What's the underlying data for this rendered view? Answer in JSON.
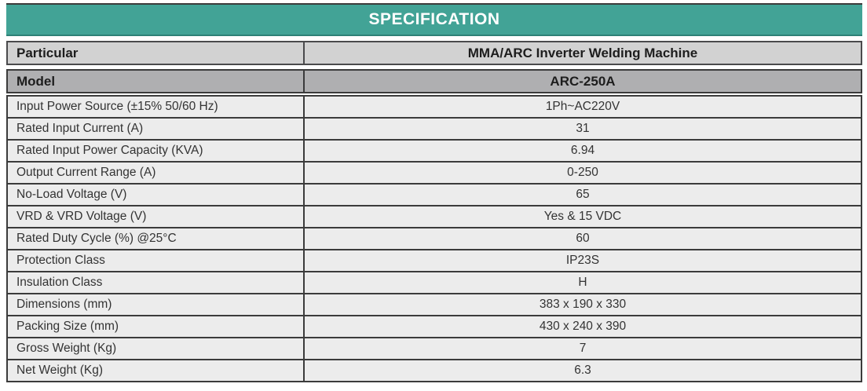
{
  "title": "SPECIFICATION",
  "colors": {
    "accent_teal": "#42A396",
    "header_row_gray": "#D2D2D2",
    "model_row_gray": "#AFAFB1",
    "data_row_gray": "#ECECEC",
    "border_dark": "#3B3B3B",
    "title_text": "#FFFFFF"
  },
  "header": {
    "particular_label": "Particular",
    "product_name": "MMA/ARC Inverter Welding Machine"
  },
  "model": {
    "label": "Model",
    "value": "ARC-250A"
  },
  "spec": {
    "rows": [
      {
        "label": "Input Power Source (±15% 50/60 Hz)",
        "value": "1Ph~AC220V"
      },
      {
        "label": "Rated Input Current (A)",
        "value": "31"
      },
      {
        "label": "Rated Input Power Capacity (KVA)",
        "value": "6.94"
      },
      {
        "label": "Output Current Range (A)",
        "value": "0-250"
      },
      {
        "label": "No-Load Voltage (V)",
        "value": "65"
      },
      {
        "label": "VRD & VRD Voltage (V)",
        "value": "Yes & 15 VDC"
      },
      {
        "label": "Rated Duty Cycle (%) @25°C",
        "value": "60"
      },
      {
        "label": "Protection Class",
        "value": "IP23S"
      },
      {
        "label": "Insulation Class",
        "value": "H"
      },
      {
        "label": "Dimensions (mm)",
        "value": "383 x 190 x 330"
      },
      {
        "label": "Packing Size (mm)",
        "value": "430 x 240 x 390"
      },
      {
        "label": "Gross Weight (Kg)",
        "value": "7"
      },
      {
        "label": "Net Weight (Kg)",
        "value": "6.3"
      }
    ]
  }
}
